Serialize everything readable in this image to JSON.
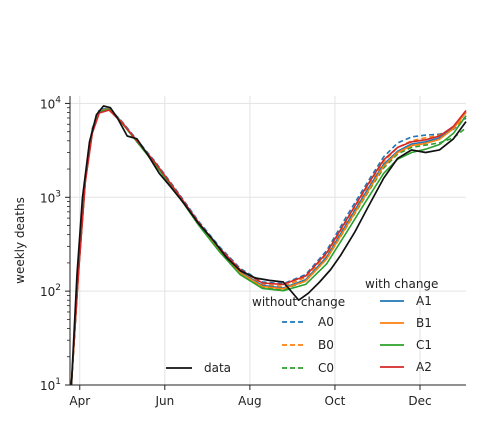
{
  "chart_data": {
    "type": "line",
    "xlabel": "",
    "ylabel": "weekly deaths",
    "y_scale": "log",
    "ylim": [
      10,
      12000
    ],
    "xlim": [
      "2020-03-25",
      "2021-01-03"
    ],
    "x_ticks": [
      {
        "date": "2020-04-01",
        "label": "Apr"
      },
      {
        "date": "2020-06-01",
        "label": "Jun"
      },
      {
        "date": "2020-08-01",
        "label": "Aug"
      },
      {
        "date": "2020-10-01",
        "label": "Oct"
      },
      {
        "date": "2020-12-01",
        "label": "Dec"
      }
    ],
    "y_ticks": [
      {
        "value": 10,
        "base": "10",
        "exp": "1"
      },
      {
        "value": 100,
        "base": "10",
        "exp": "2"
      },
      {
        "value": 1000,
        "base": "10",
        "exp": "3"
      },
      {
        "value": 10000,
        "base": "10",
        "exp": "4"
      }
    ],
    "grid": true,
    "legend": {
      "data_label": "data",
      "without_title": "without change",
      "with_title": "with change",
      "without_entries": [
        "A0",
        "B0",
        "C0"
      ],
      "with_entries": [
        "A1",
        "B1",
        "C1",
        "A2"
      ]
    },
    "series": [
      {
        "name": "data",
        "color": "#111111",
        "style": "solid",
        "x": [
          "2020-03-26",
          "2020-03-30",
          "2020-04-03",
          "2020-04-08",
          "2020-04-13",
          "2020-04-18",
          "2020-04-23",
          "2020-04-28",
          "2020-05-05",
          "2020-05-12",
          "2020-05-20",
          "2020-05-28",
          "2020-06-05",
          "2020-06-15",
          "2020-06-25",
          "2020-07-05",
          "2020-07-15",
          "2020-07-25",
          "2020-08-05",
          "2020-08-15",
          "2020-08-25",
          "2020-09-05",
          "2020-09-12",
          "2020-09-20",
          "2020-09-28",
          "2020-10-05",
          "2020-10-15",
          "2020-10-25",
          "2020-11-05",
          "2020-11-15",
          "2020-11-25",
          "2020-12-05",
          "2020-12-15",
          "2020-12-25",
          "2021-01-03"
        ],
        "y": [
          10,
          150,
          1000,
          3900,
          7600,
          9400,
          9000,
          7000,
          4500,
          4200,
          2800,
          1800,
          1300,
          850,
          530,
          360,
          230,
          165,
          138,
          130,
          125,
          80,
          95,
          125,
          170,
          240,
          420,
          800,
          1600,
          2600,
          3200,
          3000,
          3200,
          4200,
          6400
        ]
      },
      {
        "name": "A0",
        "color": "#1f77b4",
        "style": "dashed",
        "x": [
          "2020-03-26",
          "2020-03-31",
          "2020-04-05",
          "2020-04-10",
          "2020-04-15",
          "2020-04-22",
          "2020-05-01",
          "2020-05-12",
          "2020-05-25",
          "2020-06-10",
          "2020-06-25",
          "2020-07-10",
          "2020-07-25",
          "2020-08-10",
          "2020-08-25",
          "2020-09-10",
          "2020-09-25",
          "2020-10-10",
          "2020-10-25",
          "2020-11-05",
          "2020-11-15",
          "2020-11-25",
          "2020-12-05",
          "2020-12-15",
          "2020-12-25",
          "2021-01-03"
        ],
        "y": [
          10,
          170,
          1600,
          5400,
          8600,
          8900,
          6500,
          4100,
          2400,
          1150,
          560,
          300,
          175,
          125,
          120,
          150,
          270,
          650,
          1500,
          2700,
          3800,
          4400,
          4600,
          4700,
          5300,
          7000
        ]
      },
      {
        "name": "B0",
        "color": "#ff7f0e",
        "style": "dashed",
        "x": [
          "2020-03-26",
          "2020-03-31",
          "2020-04-05",
          "2020-04-10",
          "2020-04-15",
          "2020-04-22",
          "2020-05-01",
          "2020-05-12",
          "2020-05-25",
          "2020-06-10",
          "2020-06-25",
          "2020-07-10",
          "2020-07-25",
          "2020-08-10",
          "2020-08-25",
          "2020-09-10",
          "2020-09-25",
          "2020-10-10",
          "2020-10-25",
          "2020-11-05",
          "2020-11-15",
          "2020-11-25",
          "2020-12-05",
          "2020-12-15",
          "2020-12-25",
          "2021-01-03"
        ],
        "y": [
          10,
          165,
          1550,
          5200,
          8400,
          8800,
          6400,
          4000,
          2300,
          1100,
          540,
          285,
          165,
          118,
          112,
          140,
          245,
          580,
          1350,
          2400,
          3400,
          4000,
          4300,
          4600,
          5400,
          7300
        ]
      },
      {
        "name": "C0",
        "color": "#2ca02c",
        "style": "dashed",
        "x": [
          "2020-03-26",
          "2020-03-31",
          "2020-04-05",
          "2020-04-10",
          "2020-04-15",
          "2020-04-22",
          "2020-05-01",
          "2020-05-12",
          "2020-05-25",
          "2020-06-10",
          "2020-06-25",
          "2020-07-10",
          "2020-07-25",
          "2020-08-10",
          "2020-08-25",
          "2020-09-10",
          "2020-09-25",
          "2020-10-10",
          "2020-10-25",
          "2020-11-05",
          "2020-11-15",
          "2020-11-25",
          "2020-12-05",
          "2020-12-15",
          "2020-12-25",
          "2021-01-03"
        ],
        "y": [
          10,
          160,
          1500,
          5000,
          8200,
          8700,
          6300,
          3900,
          2250,
          1080,
          520,
          270,
          155,
          110,
          104,
          128,
          220,
          500,
          1150,
          2050,
          2900,
          3400,
          3600,
          3800,
          4300,
          5500
        ]
      },
      {
        "name": "A1",
        "color": "#1f77b4",
        "style": "solid",
        "x": [
          "2020-03-26",
          "2020-03-31",
          "2020-04-05",
          "2020-04-10",
          "2020-04-15",
          "2020-04-22",
          "2020-05-01",
          "2020-05-12",
          "2020-05-25",
          "2020-06-10",
          "2020-06-25",
          "2020-07-10",
          "2020-07-25",
          "2020-08-10",
          "2020-08-25",
          "2020-09-10",
          "2020-09-25",
          "2020-10-10",
          "2020-10-25",
          "2020-11-05",
          "2020-11-15",
          "2020-11-25",
          "2020-12-05",
          "2020-12-15",
          "2020-12-25",
          "2021-01-03"
        ],
        "y": [
          10,
          160,
          1550,
          5200,
          8400,
          8800,
          6400,
          4000,
          2300,
          1100,
          530,
          280,
          160,
          115,
          108,
          132,
          230,
          540,
          1250,
          2250,
          3100,
          3700,
          3900,
          4300,
          5500,
          8000
        ]
      },
      {
        "name": "B1",
        "color": "#ff7f0e",
        "style": "solid",
        "x": [
          "2020-03-26",
          "2020-03-31",
          "2020-04-05",
          "2020-04-10",
          "2020-04-15",
          "2020-04-22",
          "2020-05-01",
          "2020-05-12",
          "2020-05-25",
          "2020-06-10",
          "2020-06-25",
          "2020-07-10",
          "2020-07-25",
          "2020-08-10",
          "2020-08-25",
          "2020-09-10",
          "2020-09-25",
          "2020-10-10",
          "2020-10-25",
          "2020-11-05",
          "2020-11-15",
          "2020-11-25",
          "2020-12-05",
          "2020-12-15",
          "2020-12-25",
          "2021-01-03"
        ],
        "y": [
          10,
          158,
          1520,
          5100,
          8300,
          8750,
          6350,
          3950,
          2280,
          1090,
          525,
          275,
          157,
          112,
          106,
          128,
          220,
          510,
          1180,
          2150,
          3000,
          3550,
          3750,
          4150,
          5400,
          8100
        ]
      },
      {
        "name": "C1",
        "color": "#2ca02c",
        "style": "solid",
        "x": [
          "2020-03-26",
          "2020-03-31",
          "2020-04-05",
          "2020-04-10",
          "2020-04-15",
          "2020-04-22",
          "2020-05-01",
          "2020-05-12",
          "2020-05-25",
          "2020-06-10",
          "2020-06-25",
          "2020-07-10",
          "2020-07-25",
          "2020-08-10",
          "2020-08-25",
          "2020-09-10",
          "2020-09-25",
          "2020-10-10",
          "2020-10-25",
          "2020-11-05",
          "2020-11-15",
          "2020-11-25",
          "2020-12-05",
          "2020-12-15",
          "2020-12-25",
          "2021-01-03"
        ],
        "y": [
          10,
          155,
          1480,
          5000,
          8150,
          8650,
          6250,
          3900,
          2240,
          1070,
          510,
          265,
          150,
          107,
          101,
          118,
          195,
          440,
          1000,
          1800,
          2550,
          3000,
          3250,
          3650,
          4800,
          7400
        ]
      },
      {
        "name": "A2",
        "color": "#d62728",
        "style": "solid",
        "x": [
          "2020-03-26",
          "2020-03-31",
          "2020-04-05",
          "2020-04-10",
          "2020-04-15",
          "2020-04-22",
          "2020-05-01",
          "2020-05-12",
          "2020-05-25",
          "2020-06-10",
          "2020-06-25",
          "2020-07-10",
          "2020-07-25",
          "2020-08-10",
          "2020-08-25",
          "2020-09-10",
          "2020-09-25",
          "2020-10-10",
          "2020-10-25",
          "2020-11-05",
          "2020-11-15",
          "2020-11-25",
          "2020-12-05",
          "2020-12-15",
          "2020-12-25",
          "2021-01-03"
        ],
        "y": [
          10,
          150,
          1450,
          4800,
          7900,
          8500,
          6300,
          4000,
          2350,
          1120,
          545,
          290,
          170,
          122,
          118,
          145,
          255,
          600,
          1400,
          2500,
          3400,
          3900,
          4100,
          4500,
          5700,
          8400
        ]
      }
    ]
  }
}
